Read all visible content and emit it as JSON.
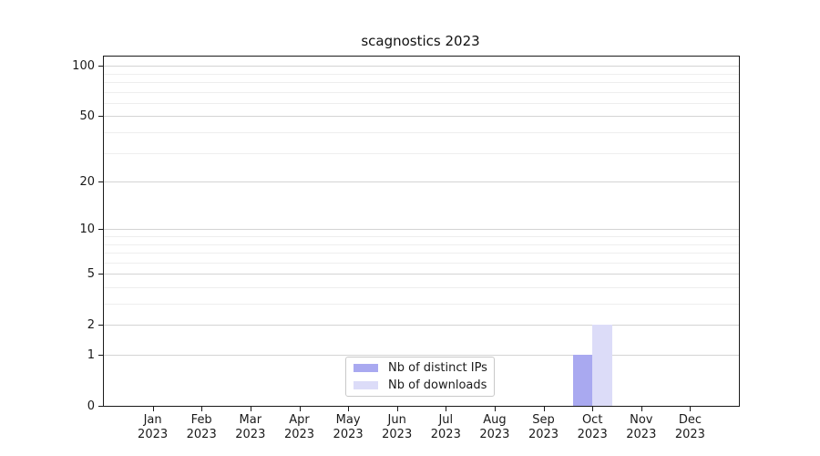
{
  "chart_data": {
    "type": "bar",
    "title": "scagnostics 2023",
    "x_categories": [
      "Jan",
      "Feb",
      "Mar",
      "Apr",
      "May",
      "Jun",
      "Jul",
      "Aug",
      "Sep",
      "Oct",
      "Nov",
      "Dec"
    ],
    "x_year": "2023",
    "series": [
      {
        "name": "Nb of distinct IPs",
        "color": "#a9a9f0",
        "values": [
          0,
          0,
          0,
          0,
          0,
          0,
          0,
          0,
          0,
          1,
          0,
          0
        ]
      },
      {
        "name": "Nb of downloads",
        "color": "#dcdcf8",
        "values": [
          0,
          0,
          0,
          0,
          0,
          0,
          0,
          0,
          0,
          2,
          0,
          0
        ]
      }
    ],
    "y_scale": "log10(1+x)",
    "y_tick_values": [
      0,
      1,
      2,
      5,
      10,
      20,
      50,
      100
    ],
    "y_tick_labels": [
      "0",
      "1",
      "2",
      "5",
      "10",
      "20",
      "50",
      "100"
    ],
    "y_gridline_values": [
      1,
      2,
      3,
      4,
      5,
      6,
      7,
      8,
      9,
      10,
      20,
      30,
      40,
      50,
      60,
      70,
      80,
      90,
      100
    ],
    "ylim": [
      0,
      110
    ],
    "grid": "horizontal",
    "legend_position": "bottom-center",
    "colors": {
      "spine": "#1a1a1a",
      "grid_major": "#d4d4d4",
      "grid_minor": "#eeeeee",
      "text": "#1a1a1a",
      "legend_border": "#c9c9c9",
      "background": "#ffffff"
    }
  }
}
